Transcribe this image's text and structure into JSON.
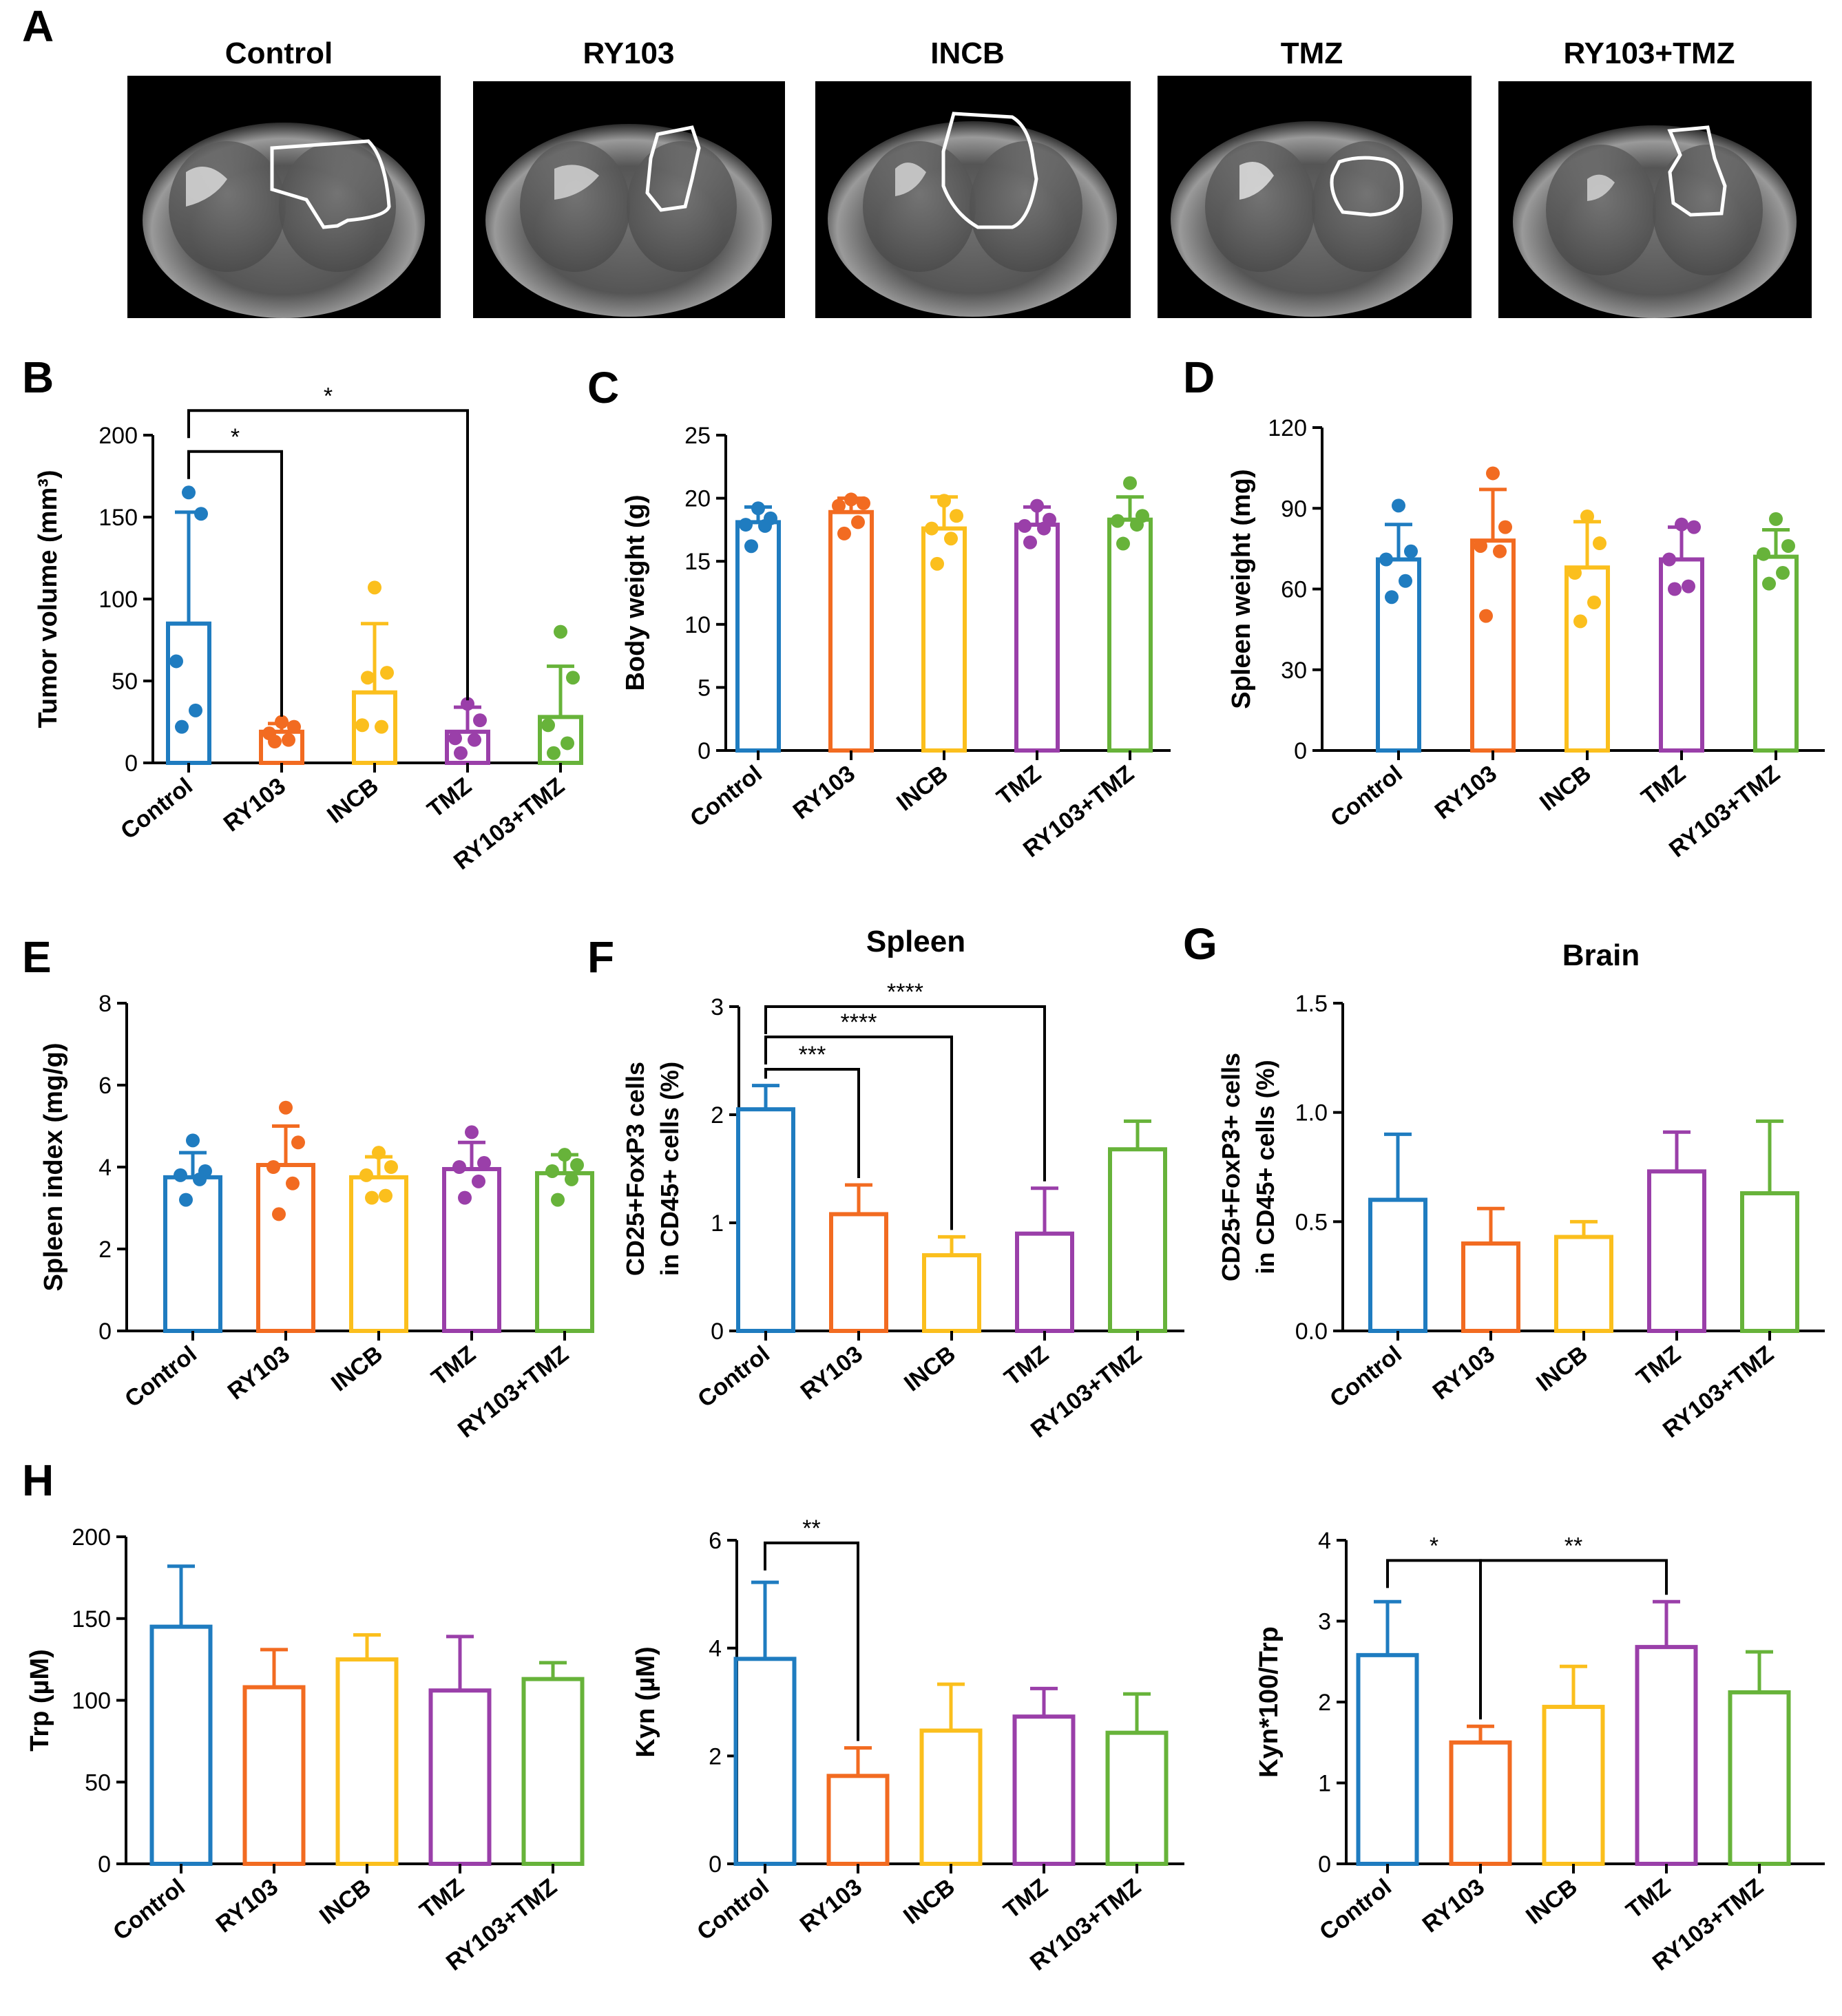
{
  "groups": [
    "Control",
    "RY103",
    "INCB",
    "TMZ",
    "RY103+TMZ"
  ],
  "colors": {
    "Control": "#1f7cc0",
    "RY103": "#f26b21",
    "INCB": "#fbbf1d",
    "TMZ": "#9a3fa9",
    "RY103+TMZ": "#67b33a",
    "axis": "#000000",
    "bg": "#ffffff"
  },
  "panel_a": {
    "letter": "A",
    "images": [
      {
        "label": "Control",
        "icon": "mri-brain-scan"
      },
      {
        "label": "RY103",
        "icon": "mri-brain-scan"
      },
      {
        "label": "INCB",
        "icon": "mri-brain-scan"
      },
      {
        "label": "TMZ",
        "icon": "mri-brain-scan"
      },
      {
        "label": "RY103+TMZ",
        "icon": "mri-brain-scan"
      }
    ]
  },
  "chart_data": [
    {
      "id": "B",
      "letter": "B",
      "type": "bar",
      "title": "",
      "ylabel": "Tumor volume (mm³)",
      "ylim": [
        0,
        200
      ],
      "yticks": [
        0,
        50,
        100,
        150,
        200
      ],
      "categories": [
        "Control",
        "RY103",
        "INCB",
        "TMZ",
        "RY103+TMZ"
      ],
      "values": [
        85,
        19,
        43,
        19,
        28
      ],
      "errors": [
        68,
        5,
        42,
        15,
        31
      ],
      "points": [
        [
          165,
          152,
          62,
          32,
          22
        ],
        [
          25,
          22,
          18,
          14,
          13
        ],
        [
          107,
          55,
          23,
          22,
          52
        ],
        [
          36,
          26,
          15,
          14,
          6
        ],
        [
          80,
          52,
          23,
          12,
          6
        ]
      ],
      "significance": [
        {
          "from": "Control",
          "to": "TMZ",
          "label": "*",
          "y": 215
        },
        {
          "from": "Control",
          "to": "RY103",
          "label": "*",
          "y": 190
        }
      ]
    },
    {
      "id": "C",
      "letter": "C",
      "type": "bar",
      "title": "",
      "ylabel": "Body weight (g)",
      "ylim": [
        0,
        25
      ],
      "yticks": [
        0,
        5,
        10,
        15,
        20,
        25
      ],
      "categories": [
        "Control",
        "RY103",
        "INCB",
        "TMZ",
        "RY103+TMZ"
      ],
      "values": [
        18.1,
        18.9,
        17.6,
        17.9,
        18.3
      ],
      "errors": [
        1.2,
        1.1,
        2.5,
        1.4,
        1.8
      ],
      "points": [
        [
          19.2,
          18.4,
          17.9,
          17.8,
          16.2
        ],
        [
          19.9,
          19.6,
          19.4,
          18.1,
          17.2
        ],
        [
          19.8,
          18.6,
          17.6,
          16.8,
          14.8
        ],
        [
          19.4,
          18.3,
          17.8,
          17.6,
          16.5
        ],
        [
          21.2,
          18.6,
          18.2,
          17.9,
          16.4
        ]
      ],
      "significance": []
    },
    {
      "id": "D",
      "letter": "D",
      "type": "bar",
      "title": "",
      "ylabel": "Spleen weight (mg)",
      "ylim": [
        0,
        120
      ],
      "yticks": [
        0,
        30,
        60,
        90,
        120
      ],
      "categories": [
        "Control",
        "RY103",
        "INCB",
        "TMZ",
        "RY103+TMZ"
      ],
      "values": [
        71,
        78,
        68,
        71,
        72
      ],
      "errors": [
        13,
        19,
        17,
        12,
        10
      ],
      "points": [
        [
          91,
          74,
          71,
          63,
          57
        ],
        [
          103,
          83,
          76,
          74,
          50
        ],
        [
          87,
          77,
          66,
          55,
          48
        ],
        [
          84,
          83,
          71,
          61,
          60
        ],
        [
          86,
          76,
          73,
          66,
          62
        ]
      ],
      "significance": []
    },
    {
      "id": "E",
      "letter": "E",
      "type": "bar",
      "title": "",
      "ylabel": "Spleen index (mg/g)",
      "ylim": [
        0,
        8
      ],
      "yticks": [
        0,
        2,
        4,
        6,
        8
      ],
      "categories": [
        "Control",
        "RY103",
        "INCB",
        "TMZ",
        "RY103+TMZ"
      ],
      "values": [
        3.75,
        4.05,
        3.75,
        3.95,
        3.85
      ],
      "errors": [
        0.6,
        0.95,
        0.5,
        0.65,
        0.45
      ],
      "points": [
        [
          4.65,
          3.9,
          3.8,
          3.7,
          3.2
        ],
        [
          5.45,
          4.6,
          4.0,
          3.6,
          2.85
        ],
        [
          4.35,
          4.0,
          3.8,
          3.3,
          3.25
        ],
        [
          4.85,
          4.1,
          4.0,
          3.65,
          3.25
        ],
        [
          4.3,
          4.05,
          3.9,
          3.7,
          3.2
        ]
      ],
      "significance": []
    },
    {
      "id": "F",
      "letter": "F",
      "type": "bar",
      "title": "Spleen",
      "ylabel": "CD25+FoxP3 cells\nin CD45+ cells (%)",
      "ylim": [
        0,
        3
      ],
      "yticks": [
        0,
        1,
        2,
        3
      ],
      "categories": [
        "Control",
        "RY103",
        "INCB",
        "TMZ",
        "RY103+TMZ"
      ],
      "values": [
        2.05,
        1.08,
        0.7,
        0.9,
        1.68
      ],
      "errors": [
        0.22,
        0.27,
        0.17,
        0.42,
        0.26
      ],
      "points": [],
      "significance": [
        {
          "from": "Control",
          "to": "TMZ",
          "label": "****",
          "y": 3.0
        },
        {
          "from": "Control",
          "to": "INCB",
          "label": "****",
          "y": 2.72
        },
        {
          "from": "Control",
          "to": "RY103",
          "label": "***",
          "y": 2.42
        }
      ]
    },
    {
      "id": "G",
      "letter": "G",
      "type": "bar",
      "title": "Brain",
      "ylabel": "CD25+FoxP3+ cells\nin CD45+ cells (%)",
      "ylim": [
        0,
        1.5
      ],
      "yticks": [
        0.0,
        0.5,
        1.0,
        1.5
      ],
      "categories": [
        "Control",
        "RY103",
        "INCB",
        "TMZ",
        "RY103+TMZ"
      ],
      "values": [
        0.6,
        0.4,
        0.43,
        0.73,
        0.63
      ],
      "errors": [
        0.3,
        0.16,
        0.07,
        0.18,
        0.33
      ],
      "points": [],
      "significance": []
    },
    {
      "id": "H1",
      "letter": "H",
      "type": "bar",
      "title": "",
      "ylabel": "Trp (µM)",
      "ylim": [
        0,
        200
      ],
      "yticks": [
        0,
        50,
        100,
        150,
        200
      ],
      "categories": [
        "Control",
        "RY103",
        "INCB",
        "TMZ",
        "RY103+TMZ"
      ],
      "values": [
        145,
        108,
        125,
        106,
        113
      ],
      "errors": [
        37,
        23,
        15,
        33,
        10
      ],
      "points": [],
      "significance": []
    },
    {
      "id": "H2",
      "letter": "",
      "type": "bar",
      "title": "",
      "ylabel": "Kyn (µM)",
      "ylim": [
        0,
        6
      ],
      "yticks": [
        0,
        2,
        4,
        6
      ],
      "categories": [
        "Control",
        "RY103",
        "INCB",
        "TMZ",
        "RY103+TMZ"
      ],
      "values": [
        3.8,
        1.63,
        2.47,
        2.73,
        2.43
      ],
      "errors": [
        1.42,
        0.52,
        0.86,
        0.52,
        0.72
      ],
      "points": [],
      "significance": [
        {
          "from": "Control",
          "to": "RY103",
          "label": "**",
          "y": 5.95
        }
      ]
    },
    {
      "id": "H3",
      "letter": "",
      "type": "bar",
      "title": "",
      "ylabel": "Kyn*100/Trp",
      "ylim": [
        0,
        4
      ],
      "yticks": [
        0,
        1,
        2,
        3,
        4
      ],
      "categories": [
        "Control",
        "RY103",
        "INCB",
        "TMZ",
        "RY103+TMZ"
      ],
      "values": [
        2.58,
        1.5,
        1.94,
        2.68,
        2.12
      ],
      "errors": [
        0.66,
        0.2,
        0.5,
        0.56,
        0.5
      ],
      "points": [],
      "significance": [
        {
          "from": "Control",
          "to": "RY103",
          "label": "*",
          "y": 3.75
        },
        {
          "from": "RY103",
          "to": "TMZ",
          "label": "**",
          "y": 3.75
        }
      ]
    }
  ]
}
